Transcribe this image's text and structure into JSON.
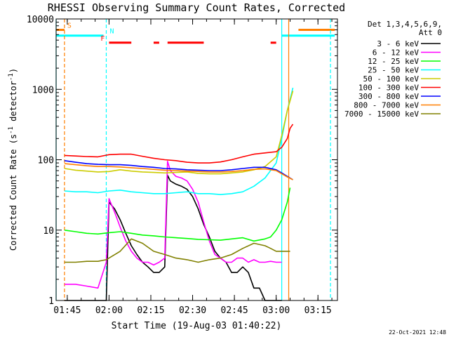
{
  "chart_data": {
    "type": "line",
    "title": "RHESSI Observing Summary Count Rates, Corrected",
    "xlabel": "Start Time (19-Aug-03 01:40:22)",
    "ylabel_parts": [
      "Corrected Count Rate (s",
      "-1",
      " detector",
      "-1",
      ")"
    ],
    "footer": "22-Oct-2021 12:48",
    "y_scale": "log",
    "ylim": [
      1,
      10000
    ],
    "xlim_minutes": [
      101,
      202
    ],
    "x_ticks": [
      {
        "m": 105,
        "label": "01:45"
      },
      {
        "m": 120,
        "label": "02:00"
      },
      {
        "m": 135,
        "label": "02:15"
      },
      {
        "m": 150,
        "label": "02:30"
      },
      {
        "m": 165,
        "label": "02:45"
      },
      {
        "m": 180,
        "label": "03:00"
      },
      {
        "m": 195,
        "label": "03:15"
      }
    ],
    "y_ticks": [
      {
        "v": 1,
        "label": "1"
      },
      {
        "v": 10,
        "label": "10"
      },
      {
        "v": 100,
        "label": "100"
      },
      {
        "v": 1000,
        "label": "1000"
      },
      {
        "v": 10000,
        "label": "10000"
      }
    ],
    "legend": {
      "title_lines": [
        "Det 1,3,4,5,6,9,",
        "Att 0"
      ],
      "placement": "right"
    },
    "flags": {
      "S": {
        "label": "S",
        "color": "#ff7f00",
        "segments": [
          [
            101,
            104
          ],
          [
            188,
            201
          ]
        ],
        "level": 7000
      },
      "N": {
        "label": "N",
        "color": "#00ffff",
        "segments": [
          [
            101,
            118
          ],
          [
            182,
            201
          ]
        ],
        "level": 5800
      },
      "F": {
        "label": "F",
        "color": "#ff0000",
        "segments": [
          [
            120,
            128
          ],
          [
            136,
            138
          ],
          [
            141,
            154
          ],
          [
            178,
            180
          ]
        ],
        "level": 4600
      }
    },
    "vlines": [
      {
        "m": 101,
        "color": "#00ffff",
        "dash": false
      },
      {
        "m": 104,
        "color": "#ff7f00",
        "dash": true
      },
      {
        "m": 119,
        "color": "#00ffff",
        "dash": true
      },
      {
        "m": 182,
        "color": "#00ffff",
        "dash": false
      },
      {
        "m": 184.5,
        "color": "#ff7f00",
        "dash": false
      },
      {
        "m": 199.5,
        "color": "#00ffff",
        "dash": true
      }
    ],
    "series": [
      {
        "name": "3 - 6 keV",
        "color": "#000000",
        "x": [
          104,
          108,
          112,
          116,
          119,
          120,
          122,
          124,
          126,
          128,
          130,
          132,
          134,
          136,
          138,
          140,
          141,
          142,
          144,
          146,
          148,
          150,
          152,
          154,
          156,
          158,
          160,
          162,
          164,
          166,
          168,
          170,
          172,
          174,
          176,
          178,
          180,
          182
        ],
        "values": [
          1,
          1,
          1,
          1,
          1,
          25,
          20,
          14,
          9,
          6,
          4.5,
          3.5,
          3,
          2.5,
          2.5,
          3,
          60,
          50,
          45,
          42,
          38,
          30,
          20,
          12,
          8,
          5,
          4,
          3.5,
          2.5,
          2.5,
          3,
          2.5,
          1.5,
          1.5,
          1,
          1,
          1,
          1
        ]
      },
      {
        "name": "6 - 12 keV",
        "color": "#ff00ff",
        "x": [
          104,
          108,
          112,
          116,
          119,
          120,
          122,
          124,
          126,
          128,
          130,
          132,
          134,
          136,
          138,
          140,
          141,
          142,
          144,
          146,
          148,
          150,
          152,
          154,
          156,
          158,
          160,
          162,
          164,
          166,
          168,
          170,
          172,
          174,
          176,
          178,
          180,
          182
        ],
        "values": [
          1.7,
          1.7,
          1.6,
          1.5,
          3.5,
          28,
          18,
          11,
          7,
          5,
          4,
          3.5,
          3.5,
          3.2,
          3.5,
          4,
          95,
          70,
          58,
          55,
          50,
          38,
          25,
          13,
          7,
          4.5,
          4,
          3.5,
          3.5,
          4,
          4,
          3.5,
          3.8,
          3.5,
          3.5,
          3.6,
          3.5,
          3.5
        ]
      },
      {
        "name": "12 - 25 keV",
        "color": "#00ff00",
        "x": [
          104,
          108,
          112,
          116,
          120,
          124,
          128,
          132,
          136,
          140,
          144,
          148,
          152,
          156,
          160,
          164,
          168,
          172,
          176,
          178,
          180,
          182,
          184,
          185
        ],
        "values": [
          10,
          9.5,
          9,
          8.8,
          9.2,
          9.5,
          9,
          8.5,
          8.3,
          8,
          7.8,
          7.6,
          7.4,
          7.3,
          7.2,
          7.5,
          7.8,
          7,
          7.5,
          8,
          10,
          14,
          25,
          40
        ]
      },
      {
        "name": "25 - 50 keV",
        "color": "#00ffff",
        "x": [
          104,
          108,
          112,
          116,
          120,
          124,
          128,
          132,
          136,
          140,
          144,
          148,
          152,
          156,
          160,
          164,
          168,
          172,
          176,
          180,
          182,
          184,
          186
        ],
        "values": [
          36,
          35,
          35,
          34,
          36,
          37,
          35,
          34,
          33,
          33,
          34,
          35,
          33,
          33,
          32,
          33,
          35,
          42,
          55,
          90,
          200,
          500,
          1050
        ]
      },
      {
        "name": "50 - 100 keV",
        "color": "#cccc00",
        "x": [
          104,
          108,
          112,
          116,
          120,
          124,
          128,
          132,
          136,
          140,
          144,
          148,
          152,
          156,
          160,
          164,
          168,
          172,
          176,
          180,
          182,
          184,
          186
        ],
        "values": [
          75,
          71,
          69,
          67,
          68,
          72,
          69,
          67,
          66,
          65,
          66,
          67,
          64,
          63,
          63,
          65,
          67,
          72,
          80,
          110,
          220,
          500,
          950
        ]
      },
      {
        "name": "100 - 300 keV",
        "color": "#ff0000",
        "x": [
          104,
          108,
          112,
          116,
          120,
          124,
          128,
          132,
          136,
          140,
          144,
          148,
          152,
          156,
          160,
          164,
          168,
          172,
          176,
          180,
          182,
          184,
          185,
          186
        ],
        "values": [
          115,
          113,
          111,
          110,
          118,
          120,
          120,
          112,
          105,
          100,
          97,
          92,
          90,
          90,
          93,
          100,
          110,
          120,
          125,
          130,
          150,
          200,
          280,
          320
        ]
      },
      {
        "name": "300 - 800 keV",
        "color": "#0000ff",
        "x": [
          104,
          108,
          112,
          116,
          120,
          124,
          128,
          132,
          136,
          140,
          144,
          148,
          152,
          156,
          160,
          164,
          168,
          172,
          176,
          180,
          182,
          184,
          186
        ],
        "values": [
          97,
          92,
          88,
          86,
          85,
          85,
          83,
          80,
          78,
          75,
          74,
          72,
          71,
          70,
          70,
          72,
          75,
          78,
          78,
          72,
          65,
          58,
          52
        ]
      },
      {
        "name": "800 - 7000 keV",
        "color": "#ff7f00",
        "x": [
          104,
          108,
          112,
          116,
          120,
          124,
          128,
          132,
          136,
          140,
          144,
          148,
          152,
          156,
          160,
          164,
          168,
          172,
          176,
          180,
          182,
          184,
          186
        ],
        "values": [
          88,
          85,
          82,
          80,
          80,
          79,
          77,
          75,
          73,
          71,
          70,
          69,
          68,
          67,
          67,
          68,
          70,
          73,
          74,
          70,
          63,
          57,
          52
        ]
      },
      {
        "name": "7000 - 15000 keV",
        "color": "#808000",
        "x": [
          104,
          108,
          112,
          116,
          119,
          120,
          124,
          128,
          132,
          136,
          140,
          144,
          148,
          152,
          156,
          160,
          164,
          168,
          172,
          176,
          178,
          180,
          182,
          184,
          185
        ],
        "values": [
          3.5,
          3.5,
          3.6,
          3.6,
          3.8,
          4,
          5,
          7.5,
          6.5,
          5,
          4.5,
          4,
          3.8,
          3.5,
          3.8,
          4,
          4.5,
          5.5,
          6.5,
          6,
          5.5,
          5,
          5,
          5,
          5
        ]
      }
    ]
  }
}
